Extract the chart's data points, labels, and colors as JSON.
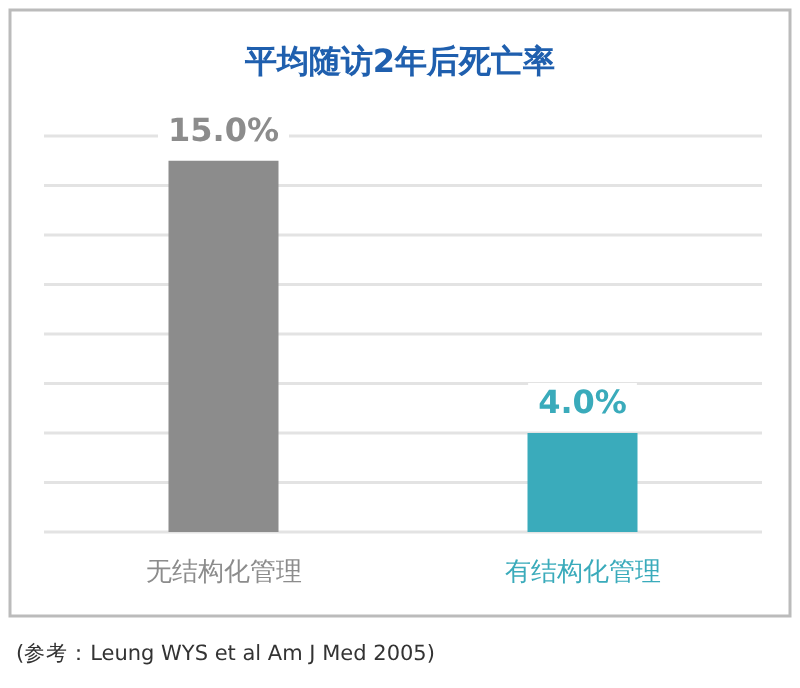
{
  "chart_data": {
    "type": "bar",
    "title": "平均随访2年后死亡率",
    "categories": [
      "无结构化管理",
      "有结构化管理"
    ],
    "values": [
      15.0,
      4.0
    ],
    "colors": [
      "#8c8c8c",
      "#3aabbb"
    ],
    "value_labels": [
      "15.0%",
      "4.0%"
    ],
    "ylim": [
      0,
      16
    ],
    "yticks": [
      {
        "value": 0,
        "label": null
      },
      {
        "value": 2,
        "label": null
      },
      {
        "value": 4,
        "label": null
      },
      {
        "value": 6,
        "label": null
      },
      {
        "value": 8,
        "label": null
      },
      {
        "value": 10,
        "label": null
      },
      {
        "value": 12,
        "label": null
      },
      {
        "value": 14,
        "label": null
      },
      {
        "value": 16,
        "label": null
      }
    ],
    "grid": "y",
    "tick_labels": "x",
    "annotations": [
      "(参考：Leung WYS  et al Am J Med 2005)"
    ]
  }
}
